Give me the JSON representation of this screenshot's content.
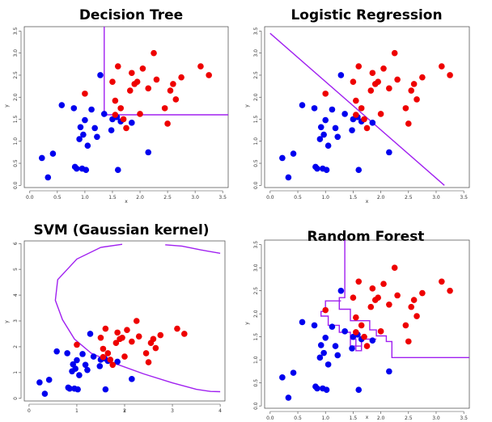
{
  "colors": {
    "class_a": "#0000ee",
    "class_b": "#ee0000",
    "boundary": "#a020f0"
  },
  "chart_data": [
    {
      "type": "scatter",
      "title": "Decision Tree",
      "xlabel": "x",
      "ylabel": "y",
      "xlim": [
        -0.1,
        3.6
      ],
      "ylim": [
        -0.05,
        3.6
      ],
      "xticks": [
        "0.0",
        "0.5",
        "1.0",
        "1.5",
        "2.0",
        "2.5",
        "3.0",
        "3.5"
      ],
      "yticks": [
        "0.0",
        "0.5",
        "1.0",
        "1.5",
        "2.0",
        "2.5",
        "3.0",
        "3.5"
      ],
      "x_tick_values": [
        0,
        0.5,
        1,
        1.5,
        2,
        2.5,
        3,
        3.5
      ],
      "y_tick_values": [
        0,
        0.5,
        1,
        1.5,
        2,
        2.5,
        3,
        3.5
      ],
      "boundary_type": "tree",
      "boundary": [
        [
          [
            1.35,
            3.6
          ],
          [
            1.35,
            1.6
          ],
          [
            3.6,
            1.6
          ]
        ]
      ]
    },
    {
      "type": "scatter",
      "title": "Logistic Regression",
      "xlabel": "x",
      "ylabel": "y",
      "xlim": [
        -0.1,
        3.6
      ],
      "ylim": [
        -0.05,
        3.6
      ],
      "xticks": [
        "0.0",
        "0.5",
        "1.0",
        "1.5",
        "2.0",
        "2.5",
        "3.0",
        "3.5"
      ],
      "yticks": [
        "0.0",
        "0.5",
        "1.0",
        "1.5",
        "2.0",
        "2.5",
        "3.0",
        "3.5"
      ],
      "x_tick_values": [
        0,
        0.5,
        1,
        1.5,
        2,
        2.5,
        3,
        3.5
      ],
      "y_tick_values": [
        0,
        0.5,
        1,
        1.5,
        2,
        2.5,
        3,
        3.5
      ],
      "boundary_type": "linear",
      "boundary": [
        [
          [
            0.0,
            3.45
          ],
          [
            3.15,
            0.0
          ]
        ]
      ]
    },
    {
      "type": "scatter",
      "title": "SVM (Gaussian kernel)",
      "xlabel": "x",
      "ylabel": "y",
      "xlim": [
        -0.1,
        4.1
      ],
      "ylim": [
        -0.1,
        6.1
      ],
      "xticks": [
        "0",
        "1",
        "2",
        "3",
        "4"
      ],
      "yticks": [
        "0",
        "1",
        "2",
        "3",
        "4",
        "5",
        "6"
      ],
      "x_tick_values": [
        0,
        1,
        2,
        3,
        4
      ],
      "y_tick_values": [
        0,
        1,
        2,
        3,
        4,
        5,
        6
      ],
      "boundary_type": "kernel",
      "boundary": [
        [
          [
            1.95,
            5.97
          ],
          [
            1.5,
            5.85
          ],
          [
            1.0,
            5.4
          ],
          [
            0.6,
            4.6
          ],
          [
            0.55,
            3.8
          ],
          [
            0.7,
            3.05
          ],
          [
            0.95,
            2.3
          ],
          [
            1.3,
            1.75
          ],
          [
            1.8,
            1.35
          ],
          [
            2.4,
            0.95
          ],
          [
            3.0,
            0.6
          ],
          [
            3.5,
            0.35
          ],
          [
            3.8,
            0.27
          ],
          [
            4.0,
            0.26
          ]
        ],
        [
          [
            2.85,
            5.95
          ],
          [
            3.2,
            5.9
          ],
          [
            3.6,
            5.75
          ],
          [
            4.0,
            5.62
          ]
        ]
      ]
    },
    {
      "type": "scatter",
      "title": "Random Forest",
      "xlabel": "x",
      "ylabel": "y",
      "xlim": [
        -0.1,
        3.6
      ],
      "ylim": [
        -0.05,
        3.6
      ],
      "xticks": [
        "0.0",
        "0.5",
        "1.0",
        "1.5",
        "2.0",
        "2.5",
        "3.0",
        "3.5"
      ],
      "yticks": [
        "0.0",
        "0.5",
        "1.0",
        "1.5",
        "2.0",
        "2.5",
        "3.0",
        "3.5"
      ],
      "x_tick_values": [
        0,
        0.5,
        1,
        1.5,
        2,
        2.5,
        3,
        3.5
      ],
      "y_tick_values": [
        0,
        0.5,
        1,
        1.5,
        2,
        2.5,
        3,
        3.5
      ],
      "boundary_type": "ensemble",
      "boundary": [
        [
          [
            1.35,
            3.6
          ],
          [
            1.35,
            2.35
          ],
          [
            1.25,
            2.35
          ],
          [
            1.25,
            2.1
          ],
          [
            1.45,
            2.1
          ],
          [
            1.45,
            1.85
          ],
          [
            1.8,
            1.85
          ],
          [
            1.8,
            1.65
          ],
          [
            1.92,
            1.65
          ],
          [
            1.92,
            1.52
          ],
          [
            2.1,
            1.52
          ],
          [
            2.1,
            1.4
          ],
          [
            2.2,
            1.4
          ],
          [
            2.2,
            1.05
          ],
          [
            3.6,
            1.05
          ]
        ],
        [
          [
            1.28,
            2.28
          ],
          [
            1.0,
            2.28
          ],
          [
            1.0,
            2.05
          ],
          [
            0.92,
            2.05
          ],
          [
            0.92,
            1.95
          ],
          [
            1.05,
            1.95
          ],
          [
            1.05,
            1.75
          ],
          [
            1.25,
            1.75
          ],
          [
            1.25,
            1.6
          ],
          [
            1.45,
            1.6
          ],
          [
            1.45,
            1.3
          ],
          [
            1.65,
            1.3
          ],
          [
            1.65,
            1.45
          ],
          [
            1.92,
            1.45
          ]
        ],
        [
          [
            1.45,
            1.45
          ],
          [
            1.55,
            1.45
          ],
          [
            1.55,
            1.2
          ],
          [
            1.65,
            1.2
          ],
          [
            1.65,
            1.38
          ]
        ]
      ]
    }
  ],
  "points": {
    "class_a": [
      [
        0.22,
        0.62
      ],
      [
        0.33,
        0.18
      ],
      [
        0.42,
        0.72
      ],
      [
        0.58,
        1.82
      ],
      [
        0.8,
        1.75
      ],
      [
        0.85,
        0.38
      ],
      [
        0.9,
        1.05
      ],
      [
        0.92,
        1.32
      ],
      [
        0.95,
        0.38
      ],
      [
        0.97,
        1.15
      ],
      [
        1.0,
        1.48
      ],
      [
        1.02,
        0.35
      ],
      [
        1.05,
        0.9
      ],
      [
        1.12,
        1.72
      ],
      [
        1.18,
        1.3
      ],
      [
        1.22,
        1.1
      ],
      [
        1.28,
        2.5
      ],
      [
        1.35,
        1.62
      ],
      [
        1.48,
        1.25
      ],
      [
        1.5,
        1.5
      ],
      [
        1.58,
        1.55
      ],
      [
        1.6,
        0.35
      ],
      [
        1.65,
        1.45
      ],
      [
        1.85,
        1.42
      ],
      [
        2.15,
        0.75
      ],
      [
        0.82,
        0.42
      ]
    ],
    "class_b": [
      [
        1.0,
        2.08
      ],
      [
        1.5,
        2.35
      ],
      [
        1.55,
        1.92
      ],
      [
        1.55,
        1.6
      ],
      [
        1.6,
        2.7
      ],
      [
        1.65,
        1.75
      ],
      [
        1.7,
        1.5
      ],
      [
        1.75,
        1.3
      ],
      [
        1.82,
        2.15
      ],
      [
        1.85,
        2.55
      ],
      [
        1.9,
        2.3
      ],
      [
        1.95,
        2.35
      ],
      [
        2.0,
        1.62
      ],
      [
        2.05,
        2.65
      ],
      [
        2.15,
        2.2
      ],
      [
        2.25,
        3.0
      ],
      [
        2.3,
        2.4
      ],
      [
        2.45,
        1.75
      ],
      [
        2.5,
        1.4
      ],
      [
        2.55,
        2.15
      ],
      [
        2.6,
        2.3
      ],
      [
        2.75,
        2.45
      ],
      [
        3.1,
        2.7
      ],
      [
        3.25,
        2.5
      ],
      [
        2.65,
        1.95
      ]
    ]
  }
}
